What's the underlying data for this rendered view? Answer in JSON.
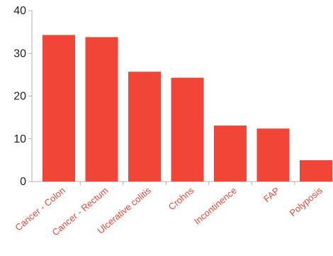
{
  "chart_data": {
    "type": "bar",
    "title": "",
    "xlabel": "",
    "ylabel": "",
    "categories": [
      "Cancer - Colon",
      "Cancer - Rectum",
      "Ulcerative colitis",
      "Crohns",
      "Incontinence",
      "FAP",
      "Polyposis"
    ],
    "values": [
      34.3,
      33.8,
      25.7,
      24.3,
      13.1,
      12.4,
      5.0
    ],
    "ylim": [
      0,
      40
    ],
    "yticks": [
      0,
      10,
      20,
      30,
      40
    ],
    "ytick_labels": [
      "0",
      "10",
      "20",
      "30",
      "40"
    ],
    "grid": false,
    "legend": "none",
    "colors": {
      "bar": "#f04537",
      "category_label": "#f04537",
      "axis": "#b0b0b0",
      "tick_label": "#222222"
    }
  }
}
